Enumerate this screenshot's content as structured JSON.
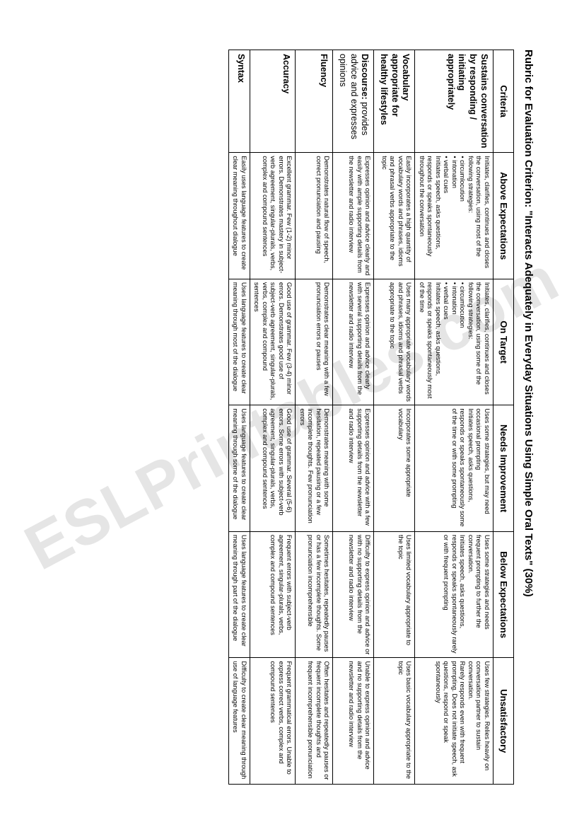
{
  "title": "Rubric for Evaluation Criterion: \"Interacts Adequately in Everyday Situations Using Simple Oral Texts\" (30%)",
  "watermark": "ESLPrintables.com",
  "headers": {
    "criteria": "Criteria",
    "levels": [
      "Above Expectations",
      "On Target",
      "Needs Improvement",
      "Below Expectations",
      "Unsatisfactory"
    ]
  },
  "rows": [
    {
      "criteria_html": "Sustains conversation by responding / initiating appropriately",
      "cells": [
        {
          "pre": "Initiates, clarifies, continues and closes the conversation, using most of the following strategies:",
          "bullets": [
            "circumlocution",
            "intonation",
            "verbal cues"
          ],
          "post": "Initiates speech, asks questions, responds or speaks spontaneously throughout the conversation"
        },
        {
          "pre": "Initiates, clarifies, continues and closes the conversation, using some of the following strategies:",
          "bullets": [
            "circumlocution",
            "intonation",
            "verbal cues"
          ],
          "post": "Initiates speech, asks questions, responds or speaks spontaneously most of the time"
        },
        {
          "pre": "Uses some strategies, but may need occasional prompting",
          "post2": "Initiates speech, asks questions, responds or speaks spontaneously some of the time or with some prompting"
        },
        {
          "pre": "Uses some strategies and needs frequent prompting to further the conversation.",
          "post2": "Initiates speech, asks questions, responds or speaks spontaneously rarely or with frequent prompting"
        },
        {
          "pre": "Uses few strategies. Relies heavily on conversation partner to sustain conversation.",
          "post2": "Rarely responds even with frequent prompting. Does not initiate speech, ask questions, respond or speak spontaneously"
        }
      ]
    },
    {
      "criteria_html": "Vocabulary appropriate for healthy lifestyles",
      "cells": [
        {
          "text": "Easily incorporates a high quantity of vocabulary words and phrases, idioms and phrasal verbs appropriate to the topic"
        },
        {
          "text": "Uses many appropriate vocabulary words and phrases, idioms and phrasal verbs appropriate to the topic"
        },
        {
          "text": "Incorporates some appropriate vocabulary"
        },
        {
          "text": "Uses limited vocabulary appropriate to the topic"
        },
        {
          "text": "Uses basic vocabulary appropriate to the topic"
        }
      ]
    },
    {
      "criteria_html": "Discourse: <span class=\"thin\">provides advice and expresses opinions</span>",
      "cells": [
        {
          "text": "Expresses opinion and advice clearly and easily with ample supporting details from the newsletter and radio interview"
        },
        {
          "text": "Expresses opinion and advice clearly with several supporting details from the newsletter and radio interview"
        },
        {
          "text": "Expresses opinion and advice with a few supporting details from the newsletter and radio interview"
        },
        {
          "text": "Difficulty to express opinion and advice or with no supporting details from the newsletter and radio interview"
        },
        {
          "text": "Unable to express opinion and advice and no supporting details from the newsletter and radio interview"
        }
      ]
    },
    {
      "criteria_html": "Fluency",
      "cells": [
        {
          "text": "Demonstrates natural flow of speech, correct pronunciation and pausing"
        },
        {
          "text": "Demonstrates clear meaning with a few pronunciation errors or pauses"
        },
        {
          "text": "Demonstrates meaning with some hesitation, repeated pausing or a few incomplete thoughts. Few pronunciation errors"
        },
        {
          "text": "Sometimes hesitates, repeatedly pauses or has a few incomplete thoughts. Some pronunciation incomprehensible"
        },
        {
          "text": "Often hesitates and repeatedly pauses or frequent incomplete thoughts and frequent incomprehensible pronunciation"
        }
      ]
    },
    {
      "criteria_html": "Accuracy",
      "cells": [
        {
          "text": "Excellent grammar. Few (1-2) minor errors. Demonstrates mastery in subject-verb agreement, singular-plurals, verbs, complex and compound sentences"
        },
        {
          "text": "Good use of grammar. Few (3-4) minor errors. Demonstrates good use of subject-verb agreement, singular-plurals, verbs, complex and compound sentences"
        },
        {
          "text": "Good use of grammar. Several (5-6) errors. Some errors with subject-verb agreement, singular-plurals, verbs, complex and compound sentences"
        },
        {
          "text": "Frequent errors with subject-verb agreement, singular-plurals, verbs, complex and compound sentences"
        },
        {
          "text": "Frequent grammatical errors. Unable to express correct verbs, complex and compound sentences"
        }
      ]
    },
    {
      "criteria_html": "Syntax",
      "cells": [
        {
          "text": "Easily uses language features to create clear meaning throughout dialogue"
        },
        {
          "text": "Uses language features to create clear meaning through most of the dialogue"
        },
        {
          "text": "Uses language features to create clear meaning through some of the dialogue"
        },
        {
          "text": "Uses language features to create clear meaning through part of the dialogue"
        },
        {
          "text": "Difficulty to create clear meaning through use of language features"
        }
      ]
    }
  ]
}
